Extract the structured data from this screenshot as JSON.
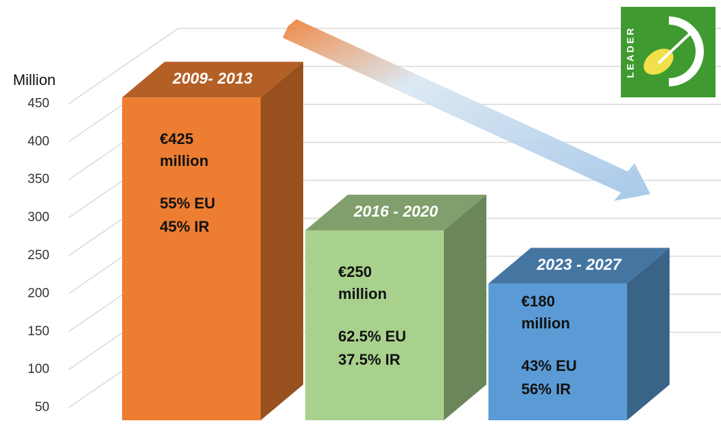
{
  "chart_data": {
    "type": "bar3d",
    "y_axis_label": "Million",
    "categories": [
      "2009- 2013",
      "2016 - 2020",
      "2023 - 2027"
    ],
    "values": [
      425,
      250,
      180
    ],
    "value_labels": [
      "€425 million",
      "€250 million",
      "€180 million"
    ],
    "shares": [
      [
        "55% EU",
        "45% IR"
      ],
      [
        "62.5% EU",
        "37.5% IR"
      ],
      [
        "43% EU",
        "56% IR"
      ]
    ],
    "colors": [
      "#ED7D31",
      "#A9D18E",
      "#5B9BD5"
    ],
    "ylim": [
      0,
      450
    ],
    "yticks": [
      50,
      100,
      150,
      200,
      250,
      300,
      350,
      400,
      450
    ],
    "grid": true,
    "logo_text": "LEADER"
  }
}
